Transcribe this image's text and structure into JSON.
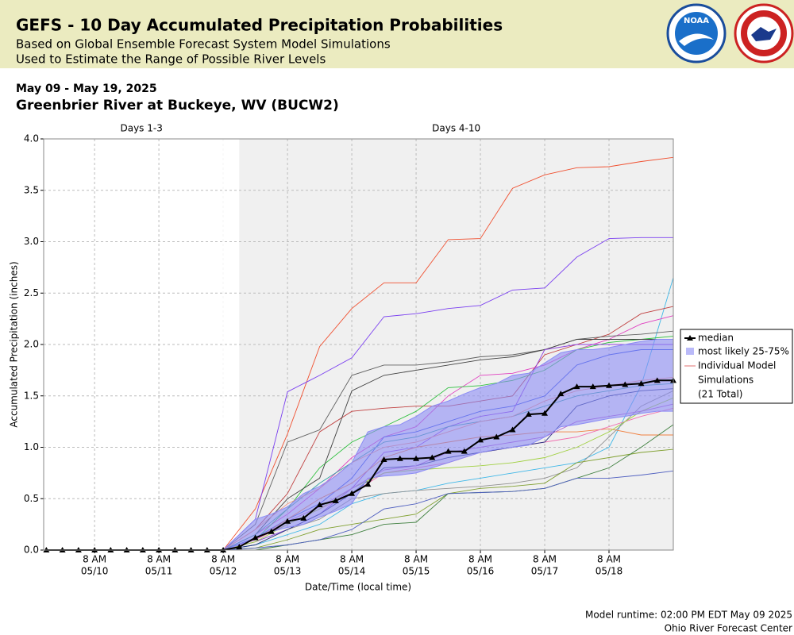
{
  "header": {
    "title": "GEFS - 10 Day Accumulated Precipitation Probabilities",
    "subtitle": [
      "Based on Global Ensemble Forecast System Model Simulations",
      "Used to Estimate the Range of Possible River Levels"
    ],
    "logo": "NOAA"
  },
  "chart_data": {
    "type": "ensemble-line",
    "date_range": "May 09 - May 19, 2025",
    "title": "Greenbrier River at Buckeye, WV (BUCW2)",
    "x_label": "Date/Time (local time)",
    "y_label": "Accumulated Precipitation (inches)",
    "xlim": [
      "2025-05-09T13:00",
      "2025-05-19T08:00"
    ],
    "ylim": [
      0,
      4
    ],
    "yticks": [
      {
        "value": 0,
        "label": "0.0"
      },
      {
        "value": 0.5,
        "label": "0.5"
      },
      {
        "value": 1,
        "label": "1.0"
      },
      {
        "value": 1.5,
        "label": "1.5"
      },
      {
        "value": 2,
        "label": "2.0"
      },
      {
        "value": 2.5,
        "label": "2.5"
      },
      {
        "value": 3,
        "label": "3.0"
      },
      {
        "value": 3.5,
        "label": "3.5"
      },
      {
        "value": 4,
        "label": "4.0"
      }
    ],
    "xticks": [
      {
        "value": "2025-05-10T08:00",
        "label": [
          "8 AM",
          "05/10"
        ]
      },
      {
        "value": "2025-05-11T08:00",
        "label": [
          "8 AM",
          "05/11"
        ]
      },
      {
        "value": "2025-05-12T08:00",
        "label": [
          "8 AM",
          "05/12"
        ]
      },
      {
        "value": "2025-05-13T08:00",
        "label": [
          "8 AM",
          "05/13"
        ]
      },
      {
        "value": "2025-05-14T08:00",
        "label": [
          "8 AM",
          "05/14"
        ]
      },
      {
        "value": "2025-05-15T08:00",
        "label": [
          "8 AM",
          "05/15"
        ]
      },
      {
        "value": "2025-05-16T08:00",
        "label": [
          "8 AM",
          "05/16"
        ]
      },
      {
        "value": "2025-05-17T08:00",
        "label": [
          "8 AM",
          "05/17"
        ]
      },
      {
        "value": "2025-05-18T08:00",
        "label": [
          "8 AM",
          "05/18"
        ]
      }
    ],
    "grid": true,
    "regions": [
      {
        "label": "Days 1-3",
        "start": "2025-05-09T13:00",
        "end": "2025-05-12T14:00",
        "color": "#ffffff"
      },
      {
        "label": "Days 4-10",
        "start": "2025-05-12T14:00",
        "end": "2025-05-19T08:00",
        "color": "#f0f0f0"
      }
    ],
    "median": {
      "name": "median",
      "color": "#000000",
      "x": [
        "2025-05-09T14:00",
        "2025-05-09T20:00",
        "2025-05-10T02:00",
        "2025-05-10T08:00",
        "2025-05-10T14:00",
        "2025-05-10T20:00",
        "2025-05-11T02:00",
        "2025-05-11T08:00",
        "2025-05-11T14:00",
        "2025-05-11T20:00",
        "2025-05-12T02:00",
        "2025-05-12T08:00",
        "2025-05-12T14:00",
        "2025-05-12T20:00",
        "2025-05-13T02:00",
        "2025-05-13T08:00",
        "2025-05-13T14:00",
        "2025-05-13T20:00",
        "2025-05-14T02:00",
        "2025-05-14T08:00",
        "2025-05-14T14:00",
        "2025-05-14T20:00",
        "2025-05-15T02:00",
        "2025-05-15T08:00",
        "2025-05-15T14:00",
        "2025-05-15T20:00",
        "2025-05-16T02:00",
        "2025-05-16T08:00",
        "2025-05-16T14:00",
        "2025-05-16T20:00",
        "2025-05-17T02:00",
        "2025-05-17T08:00",
        "2025-05-17T14:00",
        "2025-05-17T20:00",
        "2025-05-18T02:00",
        "2025-05-18T08:00",
        "2025-05-18T14:00",
        "2025-05-18T20:00",
        "2025-05-19T02:00",
        "2025-05-19T08:00"
      ],
      "values": [
        0,
        0,
        0,
        0,
        0,
        0,
        0,
        0,
        0,
        0,
        0,
        0,
        0.03,
        0.12,
        0.18,
        0.28,
        0.31,
        0.44,
        0.48,
        0.55,
        0.64,
        0.88,
        0.89,
        0.89,
        0.9,
        0.96,
        0.96,
        1.07,
        1.1,
        1.17,
        1.32,
        1.33,
        1.52,
        1.59,
        1.59,
        1.6,
        1.61,
        1.62,
        1.65,
        1.65
      ]
    },
    "band": {
      "name": "most likely 25-75%",
      "color": "#8c8cf5",
      "x": [
        "2025-05-12T08:00",
        "2025-05-12T14:00",
        "2025-05-12T20:00",
        "2025-05-13T02:00",
        "2025-05-13T08:00",
        "2025-05-13T14:00",
        "2025-05-13T20:00",
        "2025-05-14T02:00",
        "2025-05-14T08:00",
        "2025-05-14T14:00",
        "2025-05-14T20:00",
        "2025-05-15T02:00",
        "2025-05-15T08:00",
        "2025-05-15T14:00",
        "2025-05-15T20:00",
        "2025-05-16T02:00",
        "2025-05-16T08:00",
        "2025-05-16T14:00",
        "2025-05-16T20:00",
        "2025-05-17T02:00",
        "2025-05-17T08:00",
        "2025-05-17T14:00",
        "2025-05-17T20:00",
        "2025-05-18T02:00",
        "2025-05-18T08:00",
        "2025-05-18T14:00",
        "2025-05-18T20:00",
        "2025-05-19T02:00",
        "2025-05-19T08:00"
      ],
      "low": [
        0,
        0.05,
        0.12,
        0.18,
        0.22,
        0.25,
        0.32,
        0.38,
        0.45,
        0.7,
        0.72,
        0.73,
        0.75,
        0.8,
        0.85,
        0.9,
        0.95,
        0.98,
        1,
        1.02,
        1.1,
        1.2,
        1.22,
        1.25,
        1.28,
        1.3,
        1.33,
        1.35,
        1.35
      ],
      "high": [
        0,
        0.15,
        0.3,
        0.35,
        0.42,
        0.55,
        0.62,
        0.72,
        0.85,
        1.15,
        1.2,
        1.22,
        1.3,
        1.4,
        1.45,
        1.52,
        1.58,
        1.62,
        1.7,
        1.72,
        1.82,
        1.92,
        1.95,
        1.95,
        1.97,
        2,
        2.03,
        2.05,
        2.05
      ]
    },
    "members": {
      "name": [
        "Individual Model",
        "Simulations",
        "(21 Total)"
      ],
      "color": "#e06060",
      "x": [
        "2025-05-12T08:00",
        "2025-05-12T20:00",
        "2025-05-13T08:00",
        "2025-05-13T20:00",
        "2025-05-14T08:00",
        "2025-05-14T20:00",
        "2025-05-15T08:00",
        "2025-05-15T20:00",
        "2025-05-16T08:00",
        "2025-05-16T20:00",
        "2025-05-17T08:00",
        "2025-05-17T20:00",
        "2025-05-18T08:00",
        "2025-05-18T20:00",
        "2025-05-19T08:00"
      ],
      "series": [
        {
          "color": "#f05030",
          "values": [
            0,
            0.4,
            1.13,
            1.98,
            2.35,
            2.6,
            2.6,
            3.02,
            3.03,
            3.52,
            3.65,
            3.72,
            3.73,
            3.78,
            3.82
          ]
        },
        {
          "color": "#7a3ff0",
          "values": [
            0,
            0.3,
            1.54,
            1.7,
            1.87,
            2.27,
            2.3,
            2.35,
            2.38,
            2.53,
            2.55,
            2.85,
            3.03,
            3.04,
            3.04
          ]
        },
        {
          "color": "#40b8e8",
          "values": [
            0,
            0.05,
            0.15,
            0.25,
            0.45,
            0.55,
            0.58,
            0.65,
            0.7,
            0.75,
            0.8,
            0.85,
            1,
            1.6,
            2.65
          ]
        },
        {
          "color": "#c04040",
          "values": [
            0,
            0.2,
            0.55,
            1.15,
            1.35,
            1.38,
            1.4,
            1.4,
            1.45,
            1.5,
            1.9,
            2,
            2.1,
            2.3,
            2.37
          ]
        },
        {
          "color": "#e040c0",
          "values": [
            0,
            0.15,
            0.35,
            0.6,
            0.9,
            1.1,
            1.2,
            1.5,
            1.7,
            1.72,
            1.8,
            1.95,
            2.05,
            2.2,
            2.28
          ]
        },
        {
          "color": "#606060",
          "values": [
            0,
            0.25,
            1.05,
            1.17,
            1.7,
            1.8,
            1.8,
            1.83,
            1.88,
            1.9,
            1.95,
            2.05,
            2.08,
            2.1,
            2.13
          ]
        },
        {
          "color": "#30c040",
          "values": [
            0,
            0.1,
            0.4,
            0.8,
            1.05,
            1.2,
            1.35,
            1.58,
            1.6,
            1.65,
            1.75,
            1.95,
            2.02,
            2.05,
            2.08
          ]
        },
        {
          "color": "#404040",
          "values": [
            0,
            0.15,
            0.5,
            0.7,
            1.55,
            1.7,
            1.75,
            1.8,
            1.85,
            1.88,
            1.95,
            2.05,
            2.05,
            2.05,
            2.05
          ]
        },
        {
          "color": "#3050e0",
          "values": [
            0,
            0.12,
            0.3,
            0.45,
            0.7,
            1.1,
            1.15,
            1.25,
            1.35,
            1.4,
            1.5,
            1.8,
            1.9,
            1.95,
            1.95
          ]
        },
        {
          "color": "#9040e0",
          "values": [
            0,
            0.08,
            0.2,
            0.35,
            0.6,
            0.95,
            1,
            1.2,
            1.3,
            1.35,
            1.95,
            2,
            2,
            2,
            2
          ]
        },
        {
          "color": "#f08040",
          "values": [
            0,
            0.1,
            0.3,
            0.5,
            0.65,
            0.9,
            1,
            1.05,
            1.1,
            1.12,
            1.15,
            1.15,
            1.18,
            1.12,
            1.12
          ]
        },
        {
          "color": "#909090",
          "values": [
            0,
            0.05,
            0.2,
            0.3,
            0.5,
            0.55,
            0.58,
            0.6,
            0.62,
            0.65,
            0.7,
            0.8,
            1.1,
            1.4,
            1.55
          ]
        },
        {
          "color": "#80a030",
          "values": [
            0,
            0.02,
            0.1,
            0.2,
            0.25,
            0.3,
            0.35,
            0.55,
            0.6,
            0.62,
            0.65,
            0.85,
            0.9,
            0.95,
            0.98
          ]
        },
        {
          "color": "#408040",
          "values": [
            0,
            0,
            0.05,
            0.1,
            0.15,
            0.25,
            0.27,
            0.55,
            0.56,
            0.57,
            0.6,
            0.7,
            0.8,
            1,
            1.22
          ]
        },
        {
          "color": "#5060c0",
          "values": [
            0,
            0.02,
            0.05,
            0.1,
            0.2,
            0.4,
            0.45,
            0.55,
            0.56,
            0.57,
            0.6,
            0.7,
            0.7,
            0.73,
            0.77
          ]
        },
        {
          "color": "#f070b0",
          "values": [
            0,
            0.1,
            0.25,
            0.4,
            0.55,
            0.75,
            0.8,
            0.85,
            0.95,
            1,
            1.05,
            1.1,
            1.2,
            1.3,
            1.38
          ]
        },
        {
          "color": "#30a0a0",
          "values": [
            0,
            0.15,
            0.4,
            0.65,
            0.85,
            1.05,
            1.1,
            1.2,
            1.25,
            1.3,
            1.4,
            1.5,
            1.55,
            1.6,
            1.62
          ]
        },
        {
          "color": "#203080",
          "values": [
            0,
            0.05,
            0.2,
            0.35,
            0.55,
            0.8,
            0.82,
            0.9,
            0.95,
            1,
            1.05,
            1.4,
            1.5,
            1.55,
            1.57
          ]
        },
        {
          "color": "#f09080",
          "values": [
            0,
            0.2,
            0.45,
            0.6,
            0.85,
            1,
            1.05,
            1.15,
            1.25,
            1.3,
            1.45,
            1.55,
            1.6,
            1.65,
            1.68
          ]
        },
        {
          "color": "#a0d040",
          "values": [
            0,
            0.08,
            0.25,
            0.4,
            0.6,
            0.75,
            0.78,
            0.8,
            0.82,
            0.85,
            0.9,
            1,
            1.15,
            1.35,
            1.48
          ]
        },
        {
          "color": "#b060d0",
          "values": [
            0,
            0.1,
            0.28,
            0.42,
            0.6,
            0.78,
            0.82,
            0.95,
            1,
            1.05,
            1.1,
            1.25,
            1.3,
            1.35,
            1.42
          ]
        }
      ]
    }
  },
  "footer": [
    "Model runtime: 02:00 PM EDT May 09 2025",
    "Ohio River Forecast Center"
  ]
}
